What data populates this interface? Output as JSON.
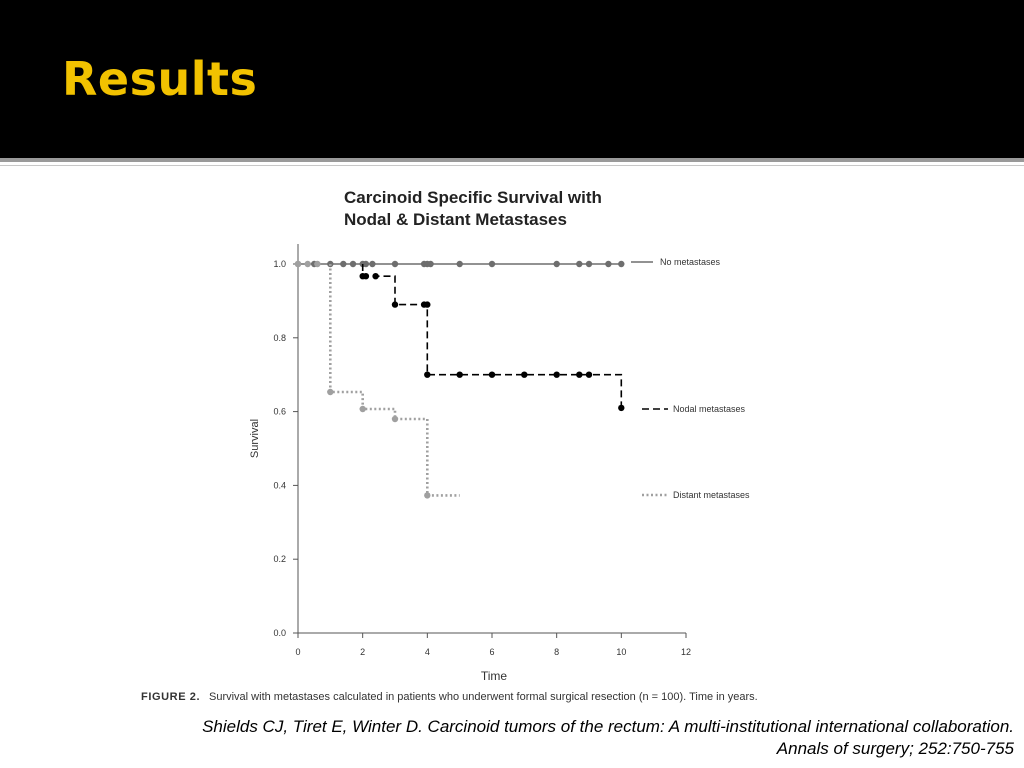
{
  "slide": {
    "title": "Results",
    "accent_color": "#f2c200",
    "header_color": "#000000"
  },
  "chart_data": {
    "type": "line",
    "title_line1": "Carcinoid Specific Survival with",
    "title_line2": "Nodal & Distant Metastases",
    "xlabel": "Time",
    "ylabel": "Survival",
    "xlim": [
      0,
      12
    ],
    "ylim": [
      0,
      1.0
    ],
    "x_ticks": [
      0,
      2,
      4,
      6,
      8,
      10,
      12
    ],
    "y_ticks": [
      "0.0",
      "0.2",
      "0.4",
      "0.6",
      "0.8",
      "1.0"
    ],
    "grid": false,
    "legend_placement": "right, inline at series ends",
    "series": [
      {
        "name": "No metastases",
        "style": "solid",
        "color": "#6e6e6e",
        "steps": [
          [
            0,
            1.0
          ],
          [
            10,
            1.0
          ]
        ],
        "censored_x": [
          0,
          0.5,
          1,
          1.4,
          1.7,
          2,
          2.1,
          2.3,
          3,
          3.9,
          4,
          4.1,
          5,
          6,
          8,
          8.7,
          9,
          9.6,
          10
        ]
      },
      {
        "name": "Nodal metastases",
        "style": "dashed",
        "color": "#000000",
        "steps": [
          [
            2,
            1.0
          ],
          [
            2,
            0.967
          ],
          [
            3,
            0.967
          ],
          [
            3,
            0.89
          ],
          [
            4,
            0.89
          ],
          [
            4,
            0.7
          ],
          [
            10,
            0.7
          ],
          [
            10,
            0.61
          ]
        ],
        "censored": [
          [
            2,
            0.967
          ],
          [
            2.1,
            0.967
          ],
          [
            2.4,
            0.967
          ],
          [
            3,
            0.89
          ],
          [
            3.9,
            0.89
          ],
          [
            4,
            0.89
          ],
          [
            4,
            0.7
          ],
          [
            5,
            0.7
          ],
          [
            6,
            0.7
          ],
          [
            7,
            0.7
          ],
          [
            8,
            0.7
          ],
          [
            8.7,
            0.7
          ],
          [
            9,
            0.7
          ],
          [
            10,
            0.61
          ]
        ]
      },
      {
        "name": "Distant metastases",
        "style": "dotted",
        "color": "#a0a0a0",
        "steps": [
          [
            1,
            1.0
          ],
          [
            1,
            0.653
          ],
          [
            2,
            0.653
          ],
          [
            2,
            0.607
          ],
          [
            3,
            0.607
          ],
          [
            3,
            0.58
          ],
          [
            4,
            0.58
          ],
          [
            4,
            0.373
          ],
          [
            5,
            0.373
          ]
        ],
        "censored": [
          [
            0,
            1.0
          ],
          [
            0.3,
            1.0
          ],
          [
            0.6,
            1.0
          ],
          [
            1,
            0.653
          ],
          [
            2,
            0.607
          ],
          [
            3,
            0.58
          ],
          [
            4,
            0.373
          ]
        ]
      }
    ],
    "caption_label": "FIGURE 2.",
    "caption_text": "Survival with metastases calculated in patients who underwent formal surgical resection (n = 100). Time in years."
  },
  "citation": {
    "line1": "Shields CJ, Tiret E, Winter D. Carcinoid tumors of the rectum: A multi-institutional international collaboration.",
    "line2": "Annals of surgery; 252:750-755"
  }
}
